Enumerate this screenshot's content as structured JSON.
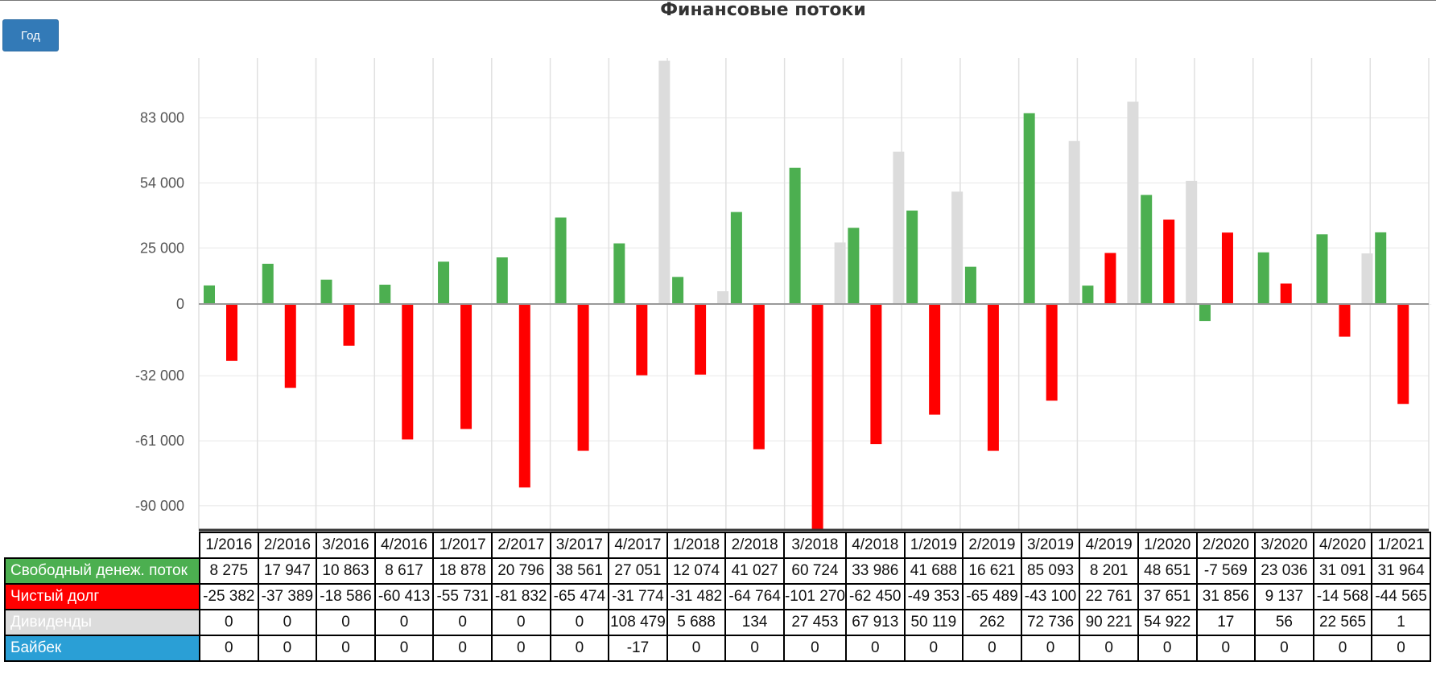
{
  "title": "Финансовые потоки",
  "year_button": "Год",
  "colors": {
    "free_cash_flow": "#4caf50",
    "net_debt": "#ff0000",
    "dividends": "#dcdcdc",
    "buyback": "#2a9fd6"
  },
  "chart_data": {
    "type": "bar",
    "title": "Финансовые потоки",
    "categories": [
      "1/2016",
      "2/2016",
      "3/2016",
      "4/2016",
      "1/2017",
      "2/2017",
      "3/2017",
      "4/2017",
      "1/2018",
      "2/2018",
      "3/2018",
      "4/2018",
      "1/2019",
      "2/2019",
      "3/2019",
      "4/2019",
      "1/2020",
      "2/2020",
      "3/2020",
      "4/2020",
      "1/2021"
    ],
    "ylim": [
      -101270,
      108479
    ],
    "yticks": [
      83000,
      54000,
      25000,
      0,
      -32000,
      -61000,
      -90000
    ],
    "ytick_labels": [
      "83 000",
      "54 000",
      "25 000",
      "0",
      "-32 000",
      "-61 000",
      "-90 000"
    ],
    "grid": true,
    "series": [
      {
        "name": "Свободный денеж. поток",
        "color": "#4caf50",
        "values": [
          8275,
          17947,
          10863,
          8617,
          18878,
          20796,
          38561,
          27051,
          12074,
          41027,
          60724,
          33986,
          41688,
          16621,
          85093,
          8201,
          48651,
          -7569,
          23036,
          31091,
          31964
        ],
        "labels": [
          "8 275",
          "17 947",
          "10 863",
          "8 617",
          "18 878",
          "20 796",
          "38 561",
          "27 051",
          "12 074",
          "41 027",
          "60 724",
          "33 986",
          "41 688",
          "16 621",
          "85 093",
          "8 201",
          "48 651",
          "-7 569",
          "23 036",
          "31 091",
          "31 964"
        ]
      },
      {
        "name": "Чистый долг",
        "color": "#ff0000",
        "values": [
          -25382,
          -37389,
          -18586,
          -60413,
          -55731,
          -81832,
          -65474,
          -31774,
          -31482,
          -64764,
          -101270,
          -62450,
          -49353,
          -65489,
          -43100,
          22761,
          37651,
          31856,
          9137,
          -14568,
          -44565
        ],
        "labels": [
          "-25 382",
          "-37 389",
          "-18 586",
          "-60 413",
          "-55 731",
          "-81 832",
          "-65 474",
          "-31 774",
          "-31 482",
          "-64 764",
          "-101 270",
          "-62 450",
          "-49 353",
          "-65 489",
          "-43 100",
          "22 761",
          "37 651",
          "31 856",
          "9 137",
          "-14 568",
          "-44 565"
        ]
      },
      {
        "name": "Дивиденды",
        "color": "#dcdcdc",
        "values": [
          0,
          0,
          0,
          0,
          0,
          0,
          0,
          108479,
          5688,
          134,
          27453,
          67913,
          50119,
          262,
          72736,
          90221,
          54922,
          17,
          56,
          22565,
          1
        ],
        "labels": [
          "0",
          "0",
          "0",
          "0",
          "0",
          "0",
          "0",
          "108 479",
          "5 688",
          "134",
          "27 453",
          "67 913",
          "50 119",
          "262",
          "72 736",
          "90 221",
          "54 922",
          "17",
          "56",
          "22 565",
          "1"
        ]
      },
      {
        "name": "Байбек",
        "color": "#2a9fd6",
        "values": [
          0,
          0,
          0,
          0,
          0,
          0,
          0,
          -17,
          0,
          0,
          0,
          0,
          0,
          0,
          0,
          0,
          0,
          0,
          0,
          0,
          0
        ],
        "labels": [
          "0",
          "0",
          "0",
          "0",
          "0",
          "0",
          "0",
          "-17",
          "0",
          "0",
          "0",
          "0",
          "0",
          "0",
          "0",
          "0",
          "0",
          "0",
          "0",
          "0",
          "0"
        ]
      }
    ]
  }
}
